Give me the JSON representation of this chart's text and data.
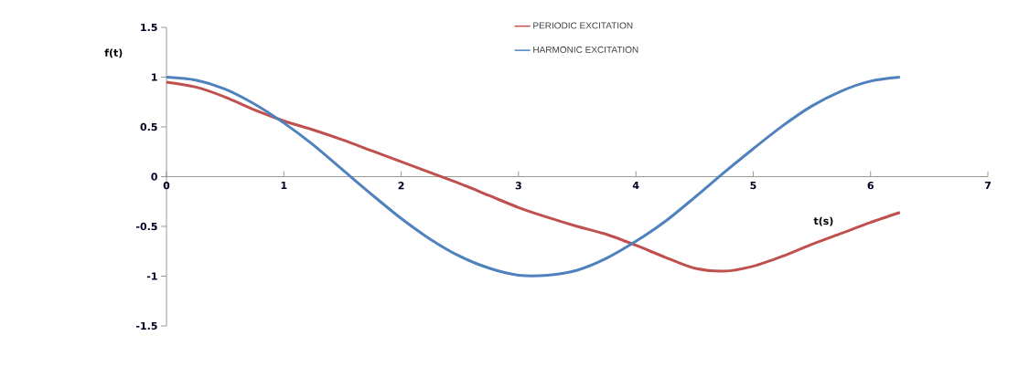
{
  "chart_data": {
    "type": "line",
    "xlabel": "t(s)",
    "ylabel": "f(t)",
    "x": [
      0,
      0.25,
      0.5,
      0.75,
      1,
      1.25,
      1.5,
      1.75,
      2,
      2.25,
      2.5,
      2.75,
      3,
      3.25,
      3.5,
      3.75,
      4,
      4.25,
      4.5,
      4.75,
      5,
      5.25,
      5.5,
      5.75,
      6,
      6.25
    ],
    "series": [
      {
        "name": "PERIODIC EXCITATION",
        "color": "#c0504d",
        "values": [
          0.95,
          0.9,
          0.8,
          0.67,
          0.56,
          0.47,
          0.37,
          0.26,
          0.15,
          0.04,
          -0.07,
          -0.19,
          -0.31,
          -0.41,
          -0.5,
          -0.58,
          -0.69,
          -0.81,
          -0.92,
          -0.95,
          -0.9,
          -0.8,
          -0.68,
          -0.57,
          -0.46,
          -0.36
        ]
      },
      {
        "name": "HARMONIC EXCITATION",
        "color": "#4f81bd",
        "values": [
          1,
          0.97,
          0.88,
          0.73,
          0.54,
          0.32,
          0.07,
          -0.18,
          -0.42,
          -0.63,
          -0.8,
          -0.92,
          -0.99,
          -0.99,
          -0.94,
          -0.82,
          -0.65,
          -0.45,
          -0.21,
          0.04,
          0.28,
          0.51,
          0.71,
          0.86,
          0.96,
          1
        ]
      }
    ],
    "xlim": [
      0,
      7
    ],
    "xticks": [
      0,
      1,
      2,
      3,
      4,
      5,
      6,
      7
    ],
    "ylim": [
      -1.5,
      1.5
    ],
    "yticks": [
      {
        "value": -1.5,
        "label": "-1.5"
      },
      {
        "value": -1,
        "label": "-1"
      },
      {
        "value": -0.5,
        "label": "-0.5"
      },
      0,
      0.5,
      1,
      1.5
    ],
    "grid": false,
    "legend": "top",
    "marker": "none",
    "line_style": "solid"
  }
}
